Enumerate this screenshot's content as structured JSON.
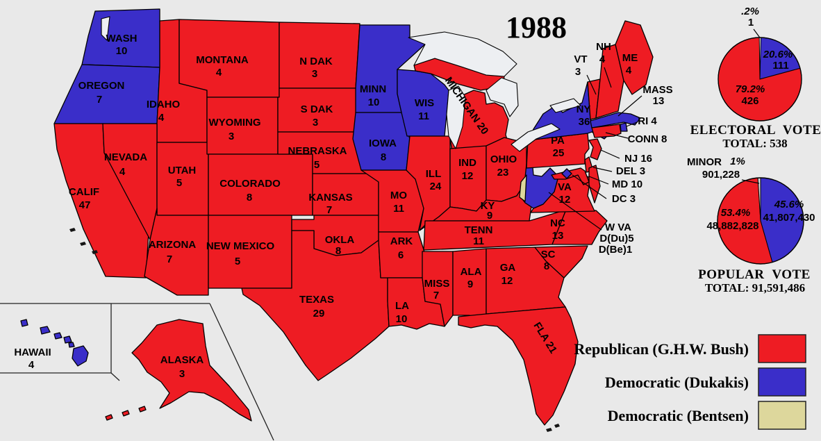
{
  "title": "1988",
  "colors": {
    "republican": "#ee1c23",
    "democratic": "#3a2ec9",
    "bentsen": "#ddd79c",
    "minor": "#dcdcdc",
    "other": "#ffffff",
    "background": "#e9e9e9",
    "water": "#edeff2"
  },
  "legend": {
    "items": [
      {
        "label": "Republican (G.H.W. Bush)",
        "party": "republican"
      },
      {
        "label": "Democratic (Dukakis)",
        "party": "democratic"
      },
      {
        "label": "Democratic (Bentsen)",
        "party": "bentsen"
      }
    ]
  },
  "map": {
    "states": [
      {
        "id": "washington",
        "lines": [
          "WASH",
          "10"
        ],
        "party": "democratic"
      },
      {
        "id": "oregon",
        "lines": [
          "OREGON",
          "7"
        ],
        "party": "democratic"
      },
      {
        "id": "california",
        "lines": [
          "CALIF",
          "47"
        ],
        "party": "republican"
      },
      {
        "id": "idaho",
        "lines": [
          "IDAHO",
          "4"
        ],
        "party": "republican"
      },
      {
        "id": "nevada",
        "lines": [
          "NEVADA",
          "4"
        ],
        "party": "republican"
      },
      {
        "id": "utah",
        "lines": [
          "UTAH",
          "5"
        ],
        "party": "republican"
      },
      {
        "id": "arizona",
        "lines": [
          "ARIZONA",
          "7"
        ],
        "party": "republican"
      },
      {
        "id": "montana",
        "lines": [
          "MONTANA",
          "4"
        ],
        "party": "republican"
      },
      {
        "id": "wyoming",
        "lines": [
          "WYOMING",
          "3"
        ],
        "party": "republican"
      },
      {
        "id": "colorado",
        "lines": [
          "COLORADO",
          "8"
        ],
        "party": "republican"
      },
      {
        "id": "new_mexico",
        "lines": [
          "NEW MEXICO",
          "5"
        ],
        "party": "republican"
      },
      {
        "id": "north_dakota",
        "lines": [
          "N DAK",
          "3"
        ],
        "party": "republican"
      },
      {
        "id": "south_dakota",
        "lines": [
          "S DAK",
          "3"
        ],
        "party": "republican"
      },
      {
        "id": "nebraska",
        "lines": [
          "NEBRASKA",
          "5"
        ],
        "party": "republican"
      },
      {
        "id": "kansas",
        "lines": [
          "KANSAS",
          "7"
        ],
        "party": "republican"
      },
      {
        "id": "oklahoma",
        "lines": [
          "OKLA",
          "8"
        ],
        "party": "republican"
      },
      {
        "id": "texas",
        "lines": [
          "TEXAS",
          "29"
        ],
        "party": "republican"
      },
      {
        "id": "minnesota",
        "lines": [
          "MINN",
          "10"
        ],
        "party": "democratic"
      },
      {
        "id": "iowa",
        "lines": [
          "IOWA",
          "8"
        ],
        "party": "democratic"
      },
      {
        "id": "missouri",
        "lines": [
          "MO",
          "11"
        ],
        "party": "republican"
      },
      {
        "id": "arkansas",
        "lines": [
          "ARK",
          "6"
        ],
        "party": "republican"
      },
      {
        "id": "louisiana",
        "lines": [
          "LA",
          "10"
        ],
        "party": "republican"
      },
      {
        "id": "wisconsin",
        "lines": [
          "WIS",
          "11"
        ],
        "party": "democratic"
      },
      {
        "id": "michigan",
        "lines": [
          "MICHIGAN 20"
        ],
        "party": "republican"
      },
      {
        "id": "illinois",
        "lines": [
          "ILL",
          "24"
        ],
        "party": "republican"
      },
      {
        "id": "indiana",
        "lines": [
          "IND",
          "12"
        ],
        "party": "republican"
      },
      {
        "id": "ohio",
        "lines": [
          "OHIO",
          "23"
        ],
        "party": "republican"
      },
      {
        "id": "kentucky",
        "lines": [
          "KY",
          "9"
        ],
        "party": "republican"
      },
      {
        "id": "tennessee",
        "lines": [
          "TENN",
          "11"
        ],
        "party": "republican"
      },
      {
        "id": "mississippi",
        "lines": [
          "MISS",
          "7"
        ],
        "party": "republican"
      },
      {
        "id": "alabama",
        "lines": [
          "ALA",
          "9"
        ],
        "party": "republican"
      },
      {
        "id": "georgia",
        "lines": [
          "GA",
          "12"
        ],
        "party": "republican"
      },
      {
        "id": "south_carolina",
        "lines": [
          "SC",
          "8"
        ],
        "party": "republican"
      },
      {
        "id": "north_carolina",
        "lines": [
          "NC",
          "13"
        ],
        "party": "republican"
      },
      {
        "id": "florida",
        "lines": [
          "FLA 21"
        ],
        "party": "republican"
      },
      {
        "id": "virginia",
        "lines": [
          "VA",
          "12"
        ],
        "party": "republican"
      },
      {
        "id": "west_virginia",
        "lines": [
          "W VA",
          "D(Du)5",
          "D(Be)1"
        ],
        "party": "democratic"
      },
      {
        "id": "west_virginia_bentsen_elector",
        "lines": [],
        "party": "bentsen"
      },
      {
        "id": "pennsylvania",
        "lines": [
          "PA",
          "25"
        ],
        "party": "republican"
      },
      {
        "id": "new_york",
        "lines": [
          "NY",
          "36"
        ],
        "party": "democratic"
      },
      {
        "id": "vermont",
        "lines": [
          "VT",
          "3"
        ],
        "party": "republican"
      },
      {
        "id": "new_hampshire",
        "lines": [
          "NH",
          "4"
        ],
        "party": "republican"
      },
      {
        "id": "maine",
        "lines": [
          "ME",
          "4"
        ],
        "party": "republican"
      },
      {
        "id": "massachusetts",
        "lines": [
          "MASS",
          "13"
        ],
        "party": "democratic"
      },
      {
        "id": "rhode_island",
        "lines": [
          "RI 4"
        ],
        "party": "democratic"
      },
      {
        "id": "connecticut",
        "lines": [
          "CONN 8"
        ],
        "party": "republican"
      },
      {
        "id": "new_jersey",
        "lines": [
          "NJ 16"
        ],
        "party": "republican"
      },
      {
        "id": "delaware",
        "lines": [
          "DEL 3"
        ],
        "party": "republican"
      },
      {
        "id": "maryland",
        "lines": [
          "MD 10"
        ],
        "party": "republican"
      },
      {
        "id": "dc",
        "lines": [
          "DC 3"
        ],
        "party": "democratic"
      },
      {
        "id": "alaska",
        "lines": [
          "ALASKA",
          "3"
        ],
        "party": "republican"
      },
      {
        "id": "hawaii",
        "lines": [
          "HAWAII",
          "4"
        ],
        "party": "democratic"
      }
    ]
  },
  "chart_data": [
    {
      "type": "pie",
      "name": "electoral",
      "title": "ELECTORAL VOTE",
      "total_label": "TOTAL: 538",
      "total": 538,
      "legend_position": "none",
      "slices": [
        {
          "name": "Other (Bentsen elector)",
          "party": "other",
          "pct": 0.2,
          "pct_label": ".2%",
          "value": 1,
          "value_label": "1"
        },
        {
          "name": "Dukakis (Democratic)",
          "party": "democratic",
          "pct": 20.6,
          "pct_label": "20.6%",
          "value": 111,
          "value_label": "111"
        },
        {
          "name": "Bush (Republican)",
          "party": "republican",
          "pct": 79.2,
          "pct_label": "79.2%",
          "value": 426,
          "value_label": "426"
        }
      ]
    },
    {
      "type": "pie",
      "name": "popular",
      "title": "POPULAR VOTE",
      "total_label": "TOTAL: 91,591,486",
      "total": 91591486,
      "legend_position": "none",
      "slices": [
        {
          "name": "Dukakis (Democratic)",
          "party": "democratic",
          "pct": 45.6,
          "pct_label": "45.6%",
          "value": 41807430,
          "value_label": "41,807,430"
        },
        {
          "name": "Bush (Republican)",
          "party": "republican",
          "pct": 53.4,
          "pct_label": "53.4%",
          "value": 48882828,
          "value_label": "48,882,828"
        },
        {
          "name": "Minor parties",
          "party": "minor",
          "pct": 1.0,
          "pct_label": "1%",
          "prefix_label": "MINOR",
          "value": 901228,
          "value_label": "901,228"
        }
      ]
    }
  ]
}
